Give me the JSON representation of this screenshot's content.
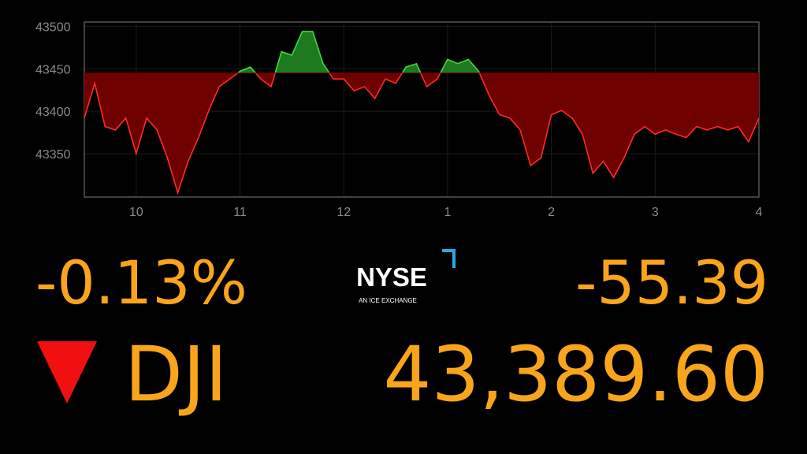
{
  "chart_data": {
    "type": "line",
    "x": [
      9.5,
      9.6,
      9.7,
      9.8,
      9.9,
      10.0,
      10.1,
      10.2,
      10.3,
      10.4,
      10.5,
      10.6,
      10.7,
      10.8,
      10.9,
      11.0,
      11.1,
      11.2,
      11.3,
      11.4,
      11.5,
      11.6,
      11.7,
      11.8,
      11.9,
      12.0,
      12.1,
      12.2,
      12.3,
      12.4,
      12.5,
      12.6,
      12.7,
      12.8,
      12.9,
      13.0,
      13.1,
      13.2,
      13.3,
      13.4,
      13.5,
      13.6,
      13.7,
      13.8,
      13.9,
      14.0,
      14.1,
      14.2,
      14.3,
      14.4,
      14.5,
      14.6,
      14.7,
      14.8,
      14.9,
      15.0,
      15.1,
      15.2,
      15.3,
      15.4,
      15.5,
      15.6,
      15.7,
      15.8,
      15.9,
      16.0
    ],
    "values": [
      43392,
      43433,
      43382,
      43378,
      43392,
      43350,
      43392,
      43378,
      43345,
      43304,
      43341,
      43369,
      43401,
      43429,
      43438,
      43447,
      43452,
      43438,
      43429,
      43470,
      43466,
      43494,
      43494,
      43456,
      43438,
      43438,
      43424,
      43429,
      43415,
      43438,
      43433,
      43452,
      43456,
      43429,
      43438,
      43461,
      43456,
      43461,
      43447,
      43419,
      43396,
      43392,
      43378,
      43336,
      43345,
      43396,
      43401,
      43392,
      43373,
      43327,
      43341,
      43322,
      43345,
      43373,
      43382,
      43373,
      43378,
      43373,
      43369,
      43382,
      43378,
      43382,
      43378,
      43382,
      43364,
      43392
    ],
    "baseline": 43445,
    "colors": {
      "below": "#ff2a2a",
      "below_fill": "#6e0000",
      "above": "#3ddc3d",
      "above_fill": "#1d7a1d"
    },
    "xlim": [
      9.5,
      16
    ],
    "xticks": [
      10,
      11,
      12,
      {
        "value": 13,
        "label": "1"
      },
      {
        "value": 14,
        "label": "2"
      },
      {
        "value": 15,
        "label": "3"
      },
      {
        "value": 16,
        "label": "4"
      }
    ],
    "ylim": [
      43299,
      43505
    ],
    "yticks": [
      43350,
      43400,
      43450,
      43500
    ],
    "grid": true
  },
  "quote": {
    "percent_change": "-0.13%",
    "point_change": "-55.39",
    "symbol": "DJI",
    "price": "43,389.60",
    "exchange": "NYSE",
    "exchange_tagline": "AN ICE EXCHANGE"
  }
}
